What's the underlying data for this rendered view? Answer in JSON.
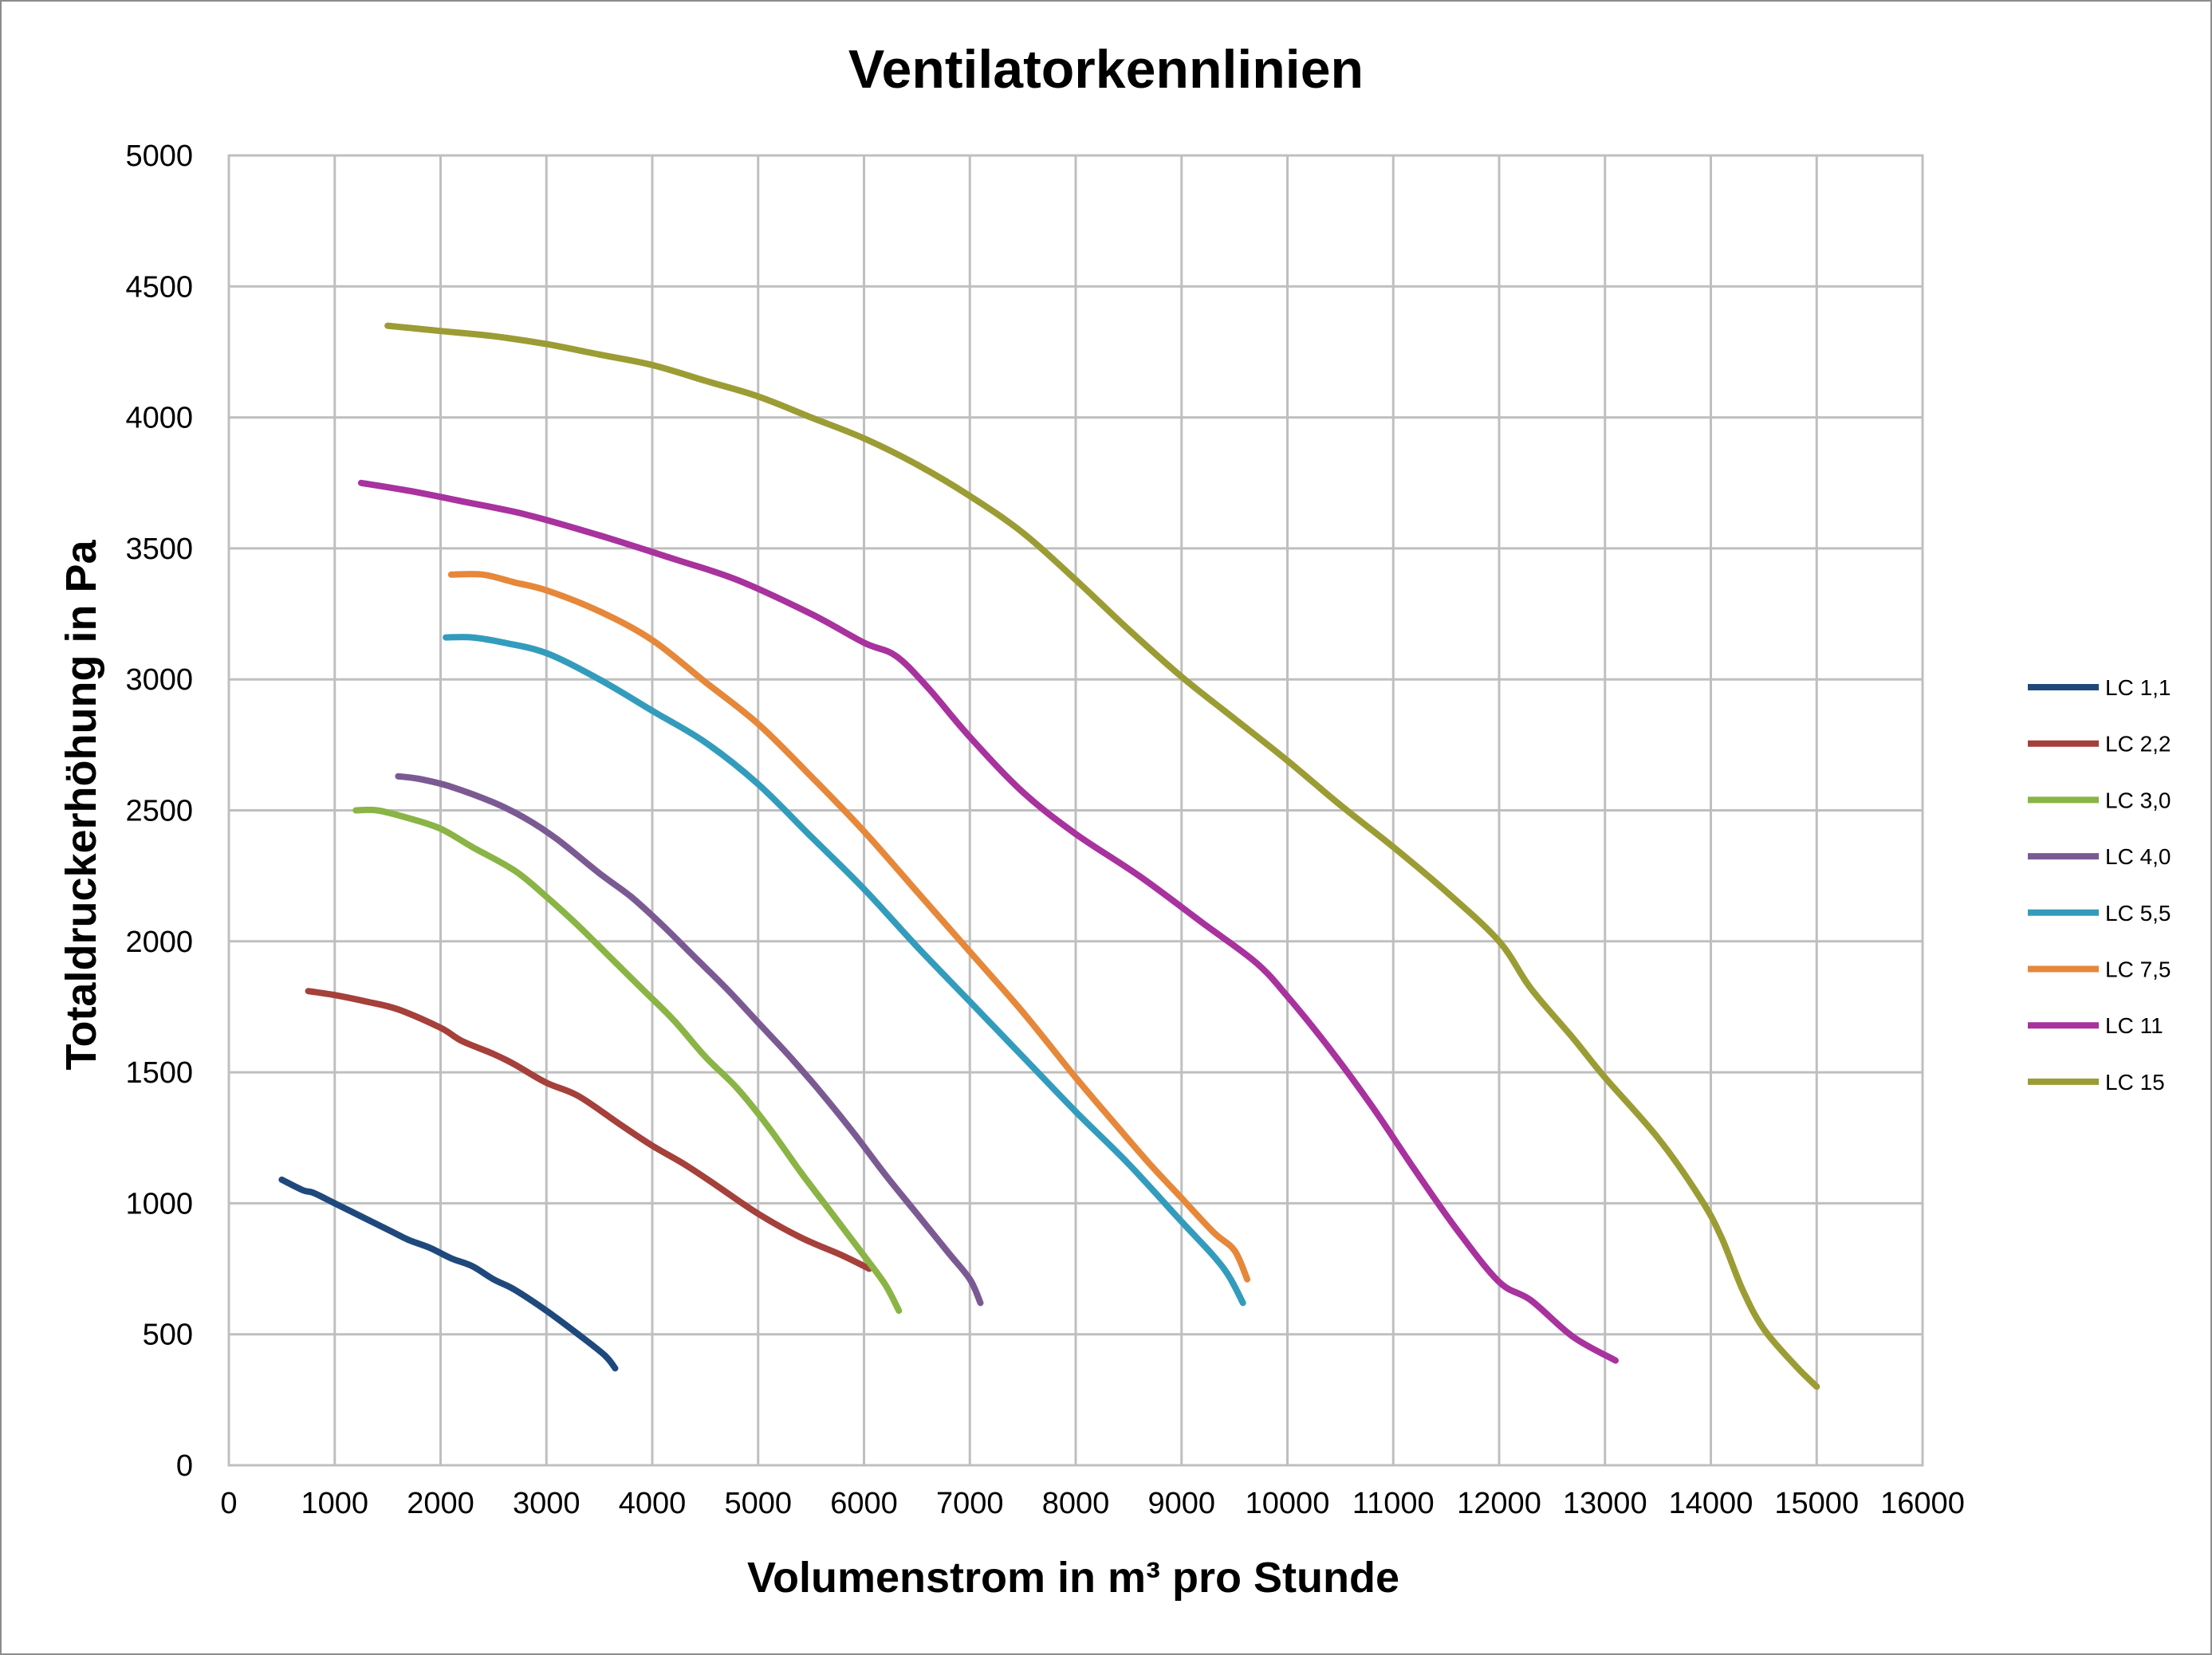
{
  "chart_data": {
    "type": "line",
    "title": "Ventilatorkennlinien",
    "xlabel": "Volumenstrom in m³ pro Stunde",
    "ylabel": "Totaldruckerhöhung  in Pa",
    "xlim": [
      0,
      16000
    ],
    "ylim": [
      0,
      5000
    ],
    "x_ticks": [
      0,
      1000,
      2000,
      3000,
      4000,
      5000,
      6000,
      7000,
      8000,
      9000,
      10000,
      11000,
      12000,
      13000,
      14000,
      15000,
      16000
    ],
    "y_ticks": [
      0,
      500,
      1000,
      1500,
      2000,
      2500,
      3000,
      3500,
      4000,
      4500,
      5000
    ],
    "grid": true,
    "legend_position": "right",
    "series": [
      {
        "name": "LC 1,1",
        "color": "#1f497d",
        "x": [
          500,
          700,
          800,
          1000,
          1500,
          1700,
          1900,
          2100,
          2300,
          2500,
          2700,
          3000,
          3300,
          3550,
          3650
        ],
        "y": [
          1090,
          1050,
          1040,
          1000,
          900,
          860,
          830,
          790,
          760,
          710,
          670,
          590,
          500,
          420,
          370
        ]
      },
      {
        "name": "LC 2,2",
        "color": "#a5403b",
        "x": [
          750,
          1000,
          1300,
          1600,
          2000,
          2200,
          2500,
          2700,
          3000,
          3300,
          3700,
          4000,
          4300,
          4600,
          5000,
          5400,
          5800,
          6050
        ],
        "y": [
          1810,
          1795,
          1770,
          1740,
          1670,
          1620,
          1570,
          1530,
          1460,
          1410,
          1300,
          1220,
          1150,
          1070,
          960,
          870,
          800,
          750
        ]
      },
      {
        "name": "LC 3,0",
        "color": "#8ab445",
        "x": [
          1200,
          1400,
          1700,
          2000,
          2300,
          2700,
          3000,
          3300,
          3600,
          3900,
          4200,
          4500,
          4800,
          5100,
          5400,
          5700,
          6000,
          6200,
          6330
        ],
        "y": [
          2500,
          2500,
          2470,
          2430,
          2360,
          2270,
          2170,
          2060,
          1940,
          1820,
          1700,
          1560,
          1440,
          1290,
          1120,
          960,
          800,
          690,
          590
        ]
      },
      {
        "name": "LC 4,0",
        "color": "#7b5a94",
        "x": [
          1600,
          1800,
          2100,
          2500,
          2800,
          3100,
          3500,
          3800,
          4100,
          4400,
          4700,
          5000,
          5300,
          5600,
          5900,
          6200,
          6500,
          6800,
          7000,
          7100
        ],
        "y": [
          2630,
          2620,
          2590,
          2530,
          2470,
          2390,
          2260,
          2170,
          2060,
          1940,
          1820,
          1690,
          1560,
          1420,
          1270,
          1110,
          960,
          810,
          710,
          620
        ]
      },
      {
        "name": "LC 5,5",
        "color": "#339cbd",
        "x": [
          2050,
          2300,
          2600,
          3000,
          3500,
          4000,
          4500,
          5000,
          5500,
          6000,
          6500,
          7000,
          7500,
          8000,
          8500,
          9000,
          9300,
          9450,
          9580
        ],
        "y": [
          3160,
          3160,
          3140,
          3100,
          3000,
          2880,
          2760,
          2600,
          2400,
          2200,
          1980,
          1770,
          1560,
          1350,
          1150,
          930,
          800,
          720,
          620
        ]
      },
      {
        "name": "LC 7,5",
        "color": "#e6873a",
        "x": [
          2100,
          2400,
          2700,
          3000,
          3500,
          4000,
          4500,
          5000,
          5500,
          6000,
          6500,
          7000,
          7500,
          8000,
          8400,
          8700,
          9000,
          9300,
          9500,
          9620
        ],
        "y": [
          3400,
          3400,
          3370,
          3340,
          3260,
          3150,
          2990,
          2830,
          2630,
          2420,
          2190,
          1960,
          1730,
          1480,
          1290,
          1150,
          1020,
          890,
          820,
          710
        ]
      },
      {
        "name": "LC 11",
        "color": "#a8329e",
        "x": [
          1250,
          1700,
          2200,
          2800,
          3500,
          4200,
          4800,
          5500,
          6000,
          6300,
          6600,
          7000,
          7500,
          8000,
          8600,
          9200,
          9700,
          10000,
          10400,
          10800,
          11200,
          11600,
          12000,
          12300,
          12700,
          13100
        ],
        "y": [
          3750,
          3720,
          3680,
          3630,
          3550,
          3460,
          3380,
          3250,
          3140,
          3090,
          2970,
          2780,
          2570,
          2410,
          2250,
          2070,
          1920,
          1790,
          1590,
          1370,
          1130,
          900,
          700,
          630,
          490,
          400
        ]
      },
      {
        "name": "LC 15",
        "color": "#9c9c35",
        "x": [
          1500,
          2000,
          2500,
          3000,
          3500,
          4000,
          4500,
          5000,
          5500,
          6000,
          6500,
          7000,
          7500,
          8000,
          8500,
          9000,
          9500,
          10000,
          10500,
          11000,
          11500,
          12000,
          12300,
          12700,
          13000,
          13500,
          13900,
          14100,
          14300,
          14500,
          14800,
          15000
        ],
        "y": [
          4350,
          4330,
          4310,
          4280,
          4240,
          4200,
          4140,
          4080,
          4000,
          3920,
          3820,
          3700,
          3560,
          3380,
          3190,
          3010,
          2850,
          2690,
          2520,
          2360,
          2190,
          2000,
          1820,
          1630,
          1480,
          1250,
          1020,
          870,
          670,
          520,
          380,
          300
        ]
      }
    ]
  }
}
